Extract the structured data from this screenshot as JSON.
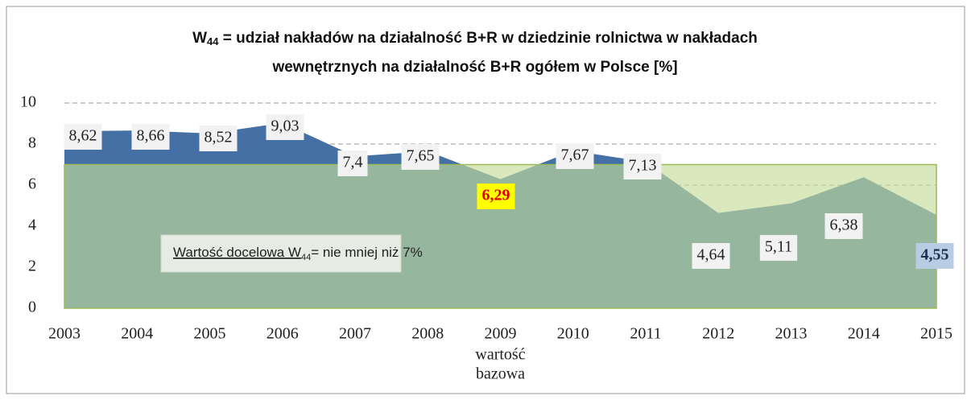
{
  "chart_data": {
    "type": "area",
    "title": {
      "symbol": "W",
      "subscript": "44",
      "line1": " = udział nakładów na działalność B+R w dziedzinie rolnictwa w nakładach",
      "line2": "wewnętrznych na działalność B+R ogółem w Polsce [%]"
    },
    "categories": [
      "2003",
      "2004",
      "2005",
      "2006",
      "2007",
      "2008",
      "2009",
      "2010",
      "2011",
      "2012",
      "2013",
      "2014",
      "2015"
    ],
    "category_note": [
      "wartość",
      "bazowa"
    ],
    "series": [
      {
        "color": "#4470a6",
        "values": [
          8.62,
          8.66,
          8.52,
          9.03,
          7.4,
          7.65,
          6.29,
          7.67,
          7.13,
          4.64,
          5.11,
          6.38,
          4.55
        ],
        "value_labels": [
          "8,62",
          "8,66",
          "8,52",
          "9,03",
          "7,4",
          "7,65",
          "6,29",
          "7,67",
          "7,13",
          "4,64",
          "5,11",
          "6,38",
          "4,55"
        ]
      }
    ],
    "target": {
      "value": 7,
      "color": "#c5dc9a",
      "border": "#9bbb59",
      "label": {
        "underlined": "Wartość docelowa W",
        "subscript": "44",
        "rest": "= nie mniej niż 7%"
      }
    },
    "ylim": [
      0,
      10
    ],
    "yticks": [
      0,
      2,
      4,
      6,
      8,
      10
    ],
    "grid": true
  }
}
